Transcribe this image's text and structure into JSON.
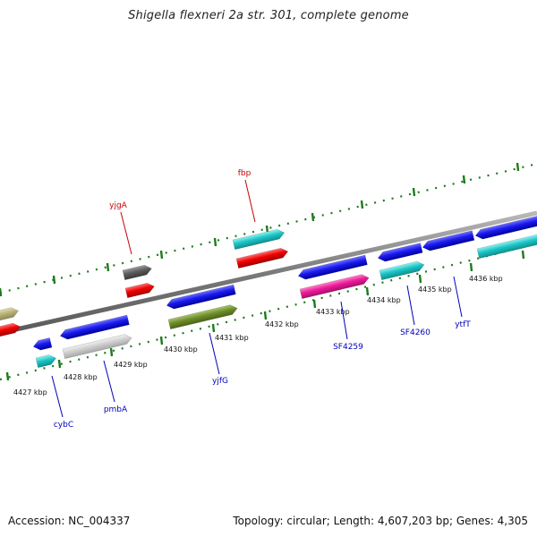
{
  "title": "Shigella flexneri 2a str. 301, complete genome",
  "footer": {
    "accession": "Accession: NC_004337",
    "summary": "Topology: circular; Length: 4,607,203 bp; Genes: 4,305"
  },
  "colors": {
    "backbone": "#8a8a8a",
    "tick": "#1d7a1d",
    "label_red": "#cc0000",
    "label_blue": "#0000bb"
  },
  "ticks": [
    {
      "label": "4427 kbp"
    },
    {
      "label": "4428 kbp"
    },
    {
      "label": "4429 kbp"
    },
    {
      "label": "4430 kbp"
    },
    {
      "label": "4431 kbp"
    },
    {
      "label": "4432 kbp"
    },
    {
      "label": "4433 kbp"
    },
    {
      "label": "4434 kbp"
    },
    {
      "label": "4435 kbp"
    },
    {
      "label": "4436 kbp"
    }
  ],
  "genes": [
    {
      "name": "yjgA",
      "color": "#cc0000"
    },
    {
      "name": "fbp",
      "color": "#cc0000"
    },
    {
      "name": "cybC",
      "color": "#0000bb"
    },
    {
      "name": "pmbA",
      "color": "#0000bb"
    },
    {
      "name": "yjfG",
      "color": "#0000bb"
    },
    {
      "name": "SF4259",
      "color": "#0000bb"
    },
    {
      "name": "SF4260",
      "color": "#0000bb"
    },
    {
      "name": "ytfT",
      "color": "#0000bb"
    }
  ]
}
